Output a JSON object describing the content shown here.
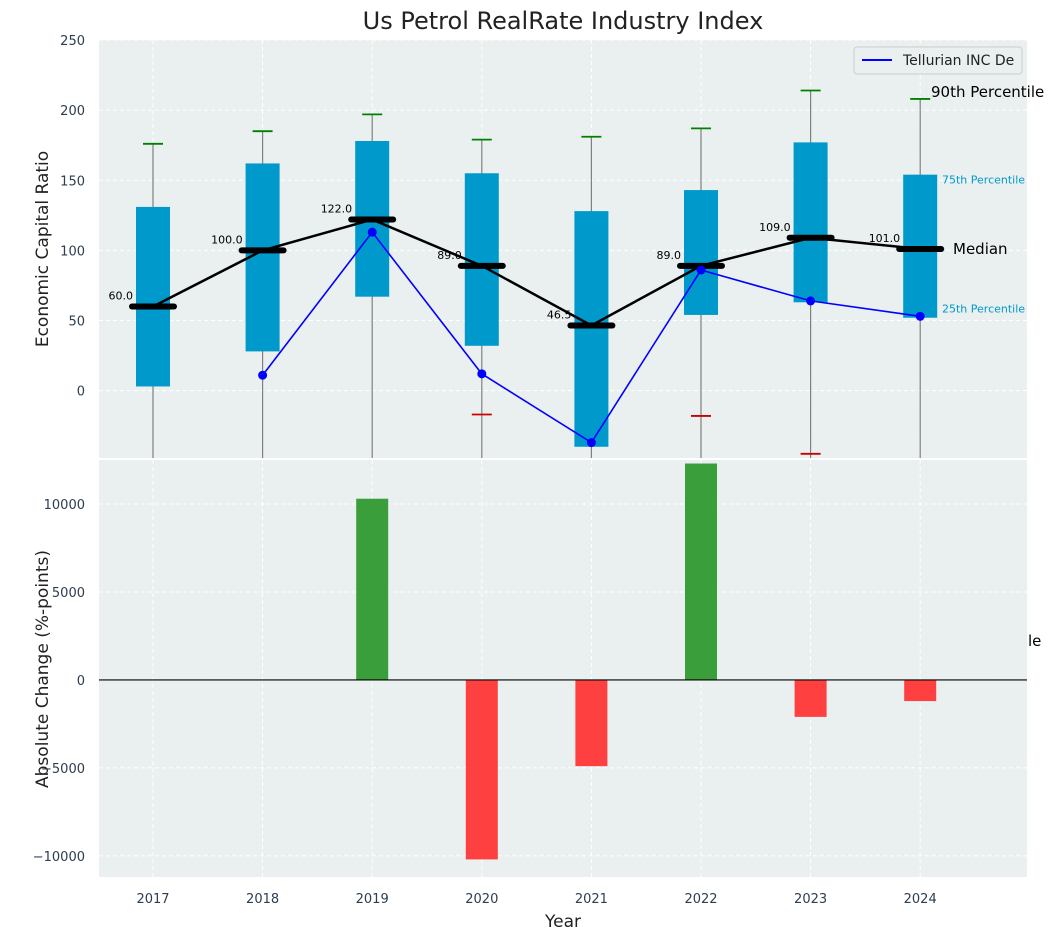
{
  "chart_data": [
    {
      "type": "box",
      "title": "Us Petrol RealRate Industry Index",
      "xlabel": "",
      "ylabel": "Economic Capital Ratio",
      "ylim": [
        -48,
        250
      ],
      "yticks": [
        0,
        50,
        100,
        150,
        200,
        250
      ],
      "grid": true,
      "categories": [
        "2017",
        "2018",
        "2019",
        "2020",
        "2021",
        "2022",
        "2023",
        "2024"
      ],
      "boxes": [
        {
          "year": "2017",
          "q1": 3,
          "q3": 131,
          "median": 60.0,
          "p90": 176,
          "p10": null
        },
        {
          "year": "2018",
          "q1": 28,
          "q3": 162,
          "median": 100.0,
          "p90": 185,
          "p10": null
        },
        {
          "year": "2019",
          "q1": 67,
          "q3": 178,
          "median": 122.0,
          "p90": 197,
          "p10": null
        },
        {
          "year": "2020",
          "q1": 32,
          "q3": 155,
          "median": 89.0,
          "p90": 179,
          "p10": -17
        },
        {
          "year": "2021",
          "q1": -40,
          "q3": 128,
          "median": 46.5,
          "p90": 181,
          "p10": null
        },
        {
          "year": "2022",
          "q1": 54,
          "q3": 143,
          "median": 89.0,
          "p90": 187,
          "p10": -18
        },
        {
          "year": "2023",
          "q1": 63,
          "q3": 177,
          "median": 109.0,
          "p90": 214,
          "p10": -45
        },
        {
          "year": "2024",
          "q1": 52,
          "q3": 154,
          "median": 101.0,
          "p90": 208,
          "p10": null
        }
      ],
      "median_labels": [
        "60.0",
        "100.0",
        "122.0",
        "89.0",
        "46.5",
        "89.0",
        "109.0",
        "101.0"
      ],
      "series": [
        {
          "name": "Tellurian INC De",
          "color": "#0000ff",
          "x": [
            "2018",
            "2019",
            "2020",
            "2021",
            "2022",
            "2023",
            "2024"
          ],
          "values": [
            11,
            113,
            12,
            -37,
            86,
            64,
            53
          ]
        }
      ],
      "legend": {
        "entries": [
          "Tellurian INC De"
        ],
        "placement": "top-right"
      },
      "annotations": [
        "90th Percentile",
        "75th Percentile",
        "Median",
        "25th Percentile"
      ]
    },
    {
      "type": "bar",
      "xlabel": "Year",
      "ylabel": "Absolute Change (%-points)",
      "ylim": [
        -11200,
        12500
      ],
      "yticks": [
        -10000,
        -5000,
        0,
        5000,
        10000
      ],
      "ytick_labels": [
        "−10000",
        "−5000",
        "0",
        "5000",
        "10000"
      ],
      "grid": true,
      "categories": [
        "2019",
        "2020",
        "2021",
        "2022",
        "2023",
        "2024"
      ],
      "values": [
        10300,
        -10200,
        -4900,
        12300,
        -2100,
        -1200
      ],
      "positive_color": "#3a9e3a",
      "negative_color": "#ff4040",
      "stray_label": "le"
    }
  ],
  "colors": {
    "plot_bg": "#eaeff0",
    "box_fill": "#0099cc",
    "median": "#000000",
    "whisker_high": "#008000",
    "whisker_low": "#cc0000",
    "whisker_line": "#808080",
    "series_line": "#0000ff",
    "median_line": "#000000"
  }
}
